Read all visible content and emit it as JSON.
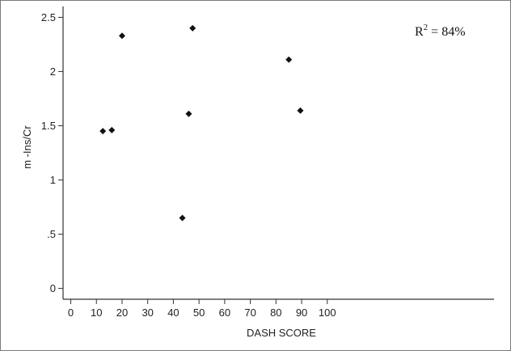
{
  "chart_data": {
    "type": "scatter",
    "title": "",
    "xlabel": "DASH SCORE",
    "ylabel": "m -Ins/Cr",
    "annotation": {
      "base": "R",
      "sup": "2",
      "rest": " = 84%"
    },
    "xlim": [
      -3,
      165
    ],
    "ylim": [
      -0.1,
      2.6
    ],
    "xticks": [
      0,
      10,
      20,
      30,
      40,
      50,
      60,
      70,
      80,
      90,
      100
    ],
    "xtick_labels": [
      "0",
      "10",
      "20",
      "30",
      "40",
      "50",
      "60",
      "70",
      "80",
      "90",
      "100"
    ],
    "yticks": [
      0,
      0.5,
      1,
      1.5,
      2,
      2.5
    ],
    "ytick_labels": [
      "0",
      ".5",
      "1",
      "1.5",
      "2",
      "2.5"
    ],
    "grid": false,
    "marker_color": "#111111",
    "series": [
      {
        "points": [
          {
            "x": 12.5,
            "y": 1.45
          },
          {
            "x": 16,
            "y": 1.46
          },
          {
            "x": 20,
            "y": 2.33
          },
          {
            "x": 43.5,
            "y": 0.65
          },
          {
            "x": 46,
            "y": 1.61
          },
          {
            "x": 47.5,
            "y": 2.4
          },
          {
            "x": 85,
            "y": 2.11
          },
          {
            "x": 89.5,
            "y": 1.64
          }
        ]
      }
    ]
  }
}
